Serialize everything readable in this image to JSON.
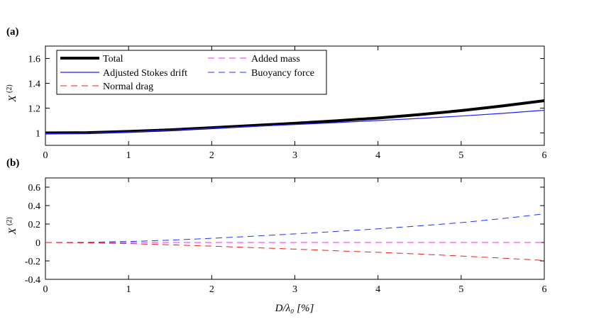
{
  "chart_data": [
    {
      "type": "line",
      "panel_label": "(a)",
      "xlabel": "",
      "ylabel_main": "X",
      "ylabel_sup": "(2)",
      "xlim": [
        0,
        6
      ],
      "ylim": [
        0.9,
        1.7
      ],
      "xticks": [
        0,
        1,
        2,
        3,
        4,
        5,
        6
      ],
      "yticks": [
        1,
        1.2,
        1.4,
        1.6
      ],
      "ytick_labels": [
        "1",
        "1.2",
        "1.4",
        "1.6"
      ],
      "grid": false,
      "legend_placement": "top-left",
      "series": [
        {
          "name": "Total",
          "color": "#000000",
          "style": "solid-thick",
          "x": [
            0,
            0.5,
            1,
            1.5,
            2,
            2.5,
            3,
            3.5,
            4,
            4.5,
            5,
            5.5,
            6
          ],
          "values": [
            1.0,
            1.002,
            1.012,
            1.025,
            1.042,
            1.06,
            1.078,
            1.098,
            1.12,
            1.148,
            1.18,
            1.218,
            1.26
          ]
        },
        {
          "name": "Adjusted Stokes drift",
          "color": "#1f1fff",
          "style": "solid",
          "x": [
            0,
            0.5,
            1,
            1.5,
            2,
            2.5,
            3,
            3.5,
            4,
            4.5,
            5,
            5.5,
            6
          ],
          "values": [
            0.995,
            0.998,
            1.008,
            1.022,
            1.038,
            1.053,
            1.068,
            1.083,
            1.1,
            1.117,
            1.136,
            1.158,
            1.183
          ]
        },
        {
          "name": "Normal drag",
          "color": "#e8201f",
          "style": "dashed",
          "values_ref": "none"
        },
        {
          "name": "Added mass",
          "color": "#ff22ff",
          "style": "dashed",
          "values_ref": "none"
        },
        {
          "name": "Buoyancy force",
          "color": "#2233ff",
          "style": "dashed",
          "values_ref": "none"
        }
      ]
    },
    {
      "type": "line",
      "panel_label": "(b)",
      "xlabel": "D/λ₀   [%]",
      "ylabel_main": "X",
      "ylabel_sup": "(2)",
      "xlim": [
        0,
        6
      ],
      "ylim": [
        -0.4,
        0.7
      ],
      "xticks": [
        0,
        1,
        2,
        3,
        4,
        5,
        6
      ],
      "yticks": [
        -0.4,
        -0.2,
        0,
        0.2,
        0.4,
        0.6
      ],
      "ytick_labels": [
        "-0.4",
        "-0.2",
        "0",
        "0.2",
        "0.4",
        "0.6"
      ],
      "grid": false,
      "series": [
        {
          "name": "Buoyancy force",
          "color": "#2233ff",
          "style": "dashed",
          "x": [
            0,
            0.5,
            1,
            1.5,
            2,
            2.5,
            3,
            3.5,
            4,
            4.5,
            5,
            5.5,
            6
          ],
          "values": [
            0.0,
            0.002,
            0.01,
            0.025,
            0.045,
            0.068,
            0.093,
            0.12,
            0.148,
            0.18,
            0.215,
            0.26,
            0.31
          ]
        },
        {
          "name": "Added mass",
          "color": "#ff22ff",
          "style": "dashed",
          "x": [
            0,
            6
          ],
          "values": [
            0.0,
            0.0
          ]
        },
        {
          "name": "Normal drag",
          "color": "#e8201f",
          "style": "dashed",
          "x": [
            0,
            0.5,
            1,
            1.5,
            2,
            2.5,
            3,
            3.5,
            4,
            4.5,
            5,
            5.5,
            6
          ],
          "values": [
            0.0,
            -0.004,
            -0.012,
            -0.025,
            -0.04,
            -0.056,
            -0.072,
            -0.09,
            -0.107,
            -0.126,
            -0.147,
            -0.17,
            -0.195
          ]
        }
      ]
    }
  ],
  "legend": {
    "entries": [
      {
        "label": "Total",
        "color": "#000000",
        "style": "solid-thick"
      },
      {
        "label": "Adjusted Stokes drift",
        "color": "#1f1fff",
        "style": "solid"
      },
      {
        "label": "Normal drag",
        "color": "#e8201f",
        "style": "dashed"
      },
      {
        "label": "Added mass",
        "color": "#ff22ff",
        "style": "dashed"
      },
      {
        "label": "Buoyancy force",
        "color": "#2233ff",
        "style": "dashed"
      }
    ]
  }
}
